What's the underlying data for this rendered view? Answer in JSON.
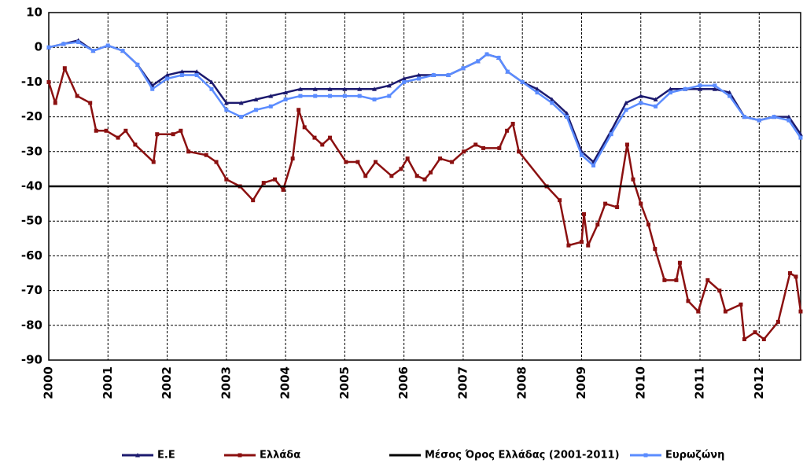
{
  "chart_data": {
    "type": "line",
    "xlim": [
      2000,
      2012.7
    ],
    "xticks": [
      2000,
      2001,
      2002,
      2003,
      2004,
      2005,
      2006,
      2007,
      2008,
      2009,
      2010,
      2011,
      2012
    ],
    "ylim": [
      -90,
      10
    ],
    "yticks": [
      10,
      0,
      -10,
      -20,
      -30,
      -40,
      -50,
      -60,
      -70,
      -80,
      -90
    ],
    "grid": true,
    "series": [
      {
        "name": "Ε.Ε",
        "color": "#1c1a6e",
        "marker": "triangle",
        "x": [
          2000,
          2000.25,
          2000.5,
          2000.75,
          2001,
          2001.25,
          2001.5,
          2001.75,
          2002,
          2002.25,
          2002.5,
          2002.75,
          2003,
          2003.25,
          2003.5,
          2003.75,
          2004,
          2004.25,
          2004.5,
          2004.75,
          2005,
          2005.25,
          2005.5,
          2005.75,
          2006,
          2006.25,
          2006.5,
          2006.75,
          2007,
          2007.25,
          2007.4,
          2007.6,
          2007.75,
          2008,
          2008.25,
          2008.5,
          2008.75,
          2009,
          2009.2,
          2009.5,
          2009.75,
          2010,
          2010.25,
          2010.5,
          2010.75,
          2011,
          2011.25,
          2011.5,
          2011.75,
          2012,
          2012.25,
          2012.5,
          2012.7
        ],
        "values": [
          0,
          1,
          2,
          -1,
          0.5,
          -1,
          -5,
          -11,
          -8,
          -7,
          -7,
          -10,
          -16,
          -16,
          -15,
          -14,
          -13,
          -12,
          -12,
          -12,
          -12,
          -12,
          -12,
          -11,
          -9,
          -8,
          -8,
          -8,
          -6,
          -4,
          -2,
          -3,
          -7,
          -10,
          -12,
          -15,
          -19,
          -30,
          -33,
          -24,
          -16,
          -14,
          -15,
          -12,
          -12,
          -12,
          -12,
          -13,
          -20,
          -21,
          -20,
          -20,
          -25
        ]
      },
      {
        "name": "Ελλάδα",
        "color": "#8b1010",
        "marker": "square",
        "x": [
          2000,
          2000.11,
          2000.27,
          2000.48,
          2000.7,
          2000.8,
          2000.97,
          2001.17,
          2001.3,
          2001.46,
          2001.77,
          2001.83,
          2002.1,
          2002.23,
          2002.36,
          2002.66,
          2002.83,
          2003.0,
          2003.23,
          2003.45,
          2003.63,
          2003.82,
          2003.96,
          2004.12,
          2004.22,
          2004.32,
          2004.49,
          2004.62,
          2004.75,
          2005.02,
          2005.22,
          2005.35,
          2005.52,
          2005.79,
          2005.95,
          2006.06,
          2006.22,
          2006.35,
          2006.45,
          2006.61,
          2006.81,
          2007.01,
          2007.21,
          2007.34,
          2007.61,
          2007.74,
          2007.84,
          2007.94,
          2008.41,
          2008.63,
          2008.78,
          2009.0,
          2009.04,
          2009.11,
          2009.27,
          2009.4,
          2009.6,
          2009.77,
          2009.87,
          2010.0,
          2010.13,
          2010.24,
          2010.4,
          2010.6,
          2010.66,
          2010.8,
          2010.97,
          2011.13,
          2011.33,
          2011.43,
          2011.69,
          2011.75,
          2011.93,
          2012.08,
          2012.32,
          2012.52,
          2012.62,
          2012.7
        ],
        "values": [
          -10,
          -16,
          -6,
          -14,
          -16,
          -24,
          -24,
          -26,
          -24,
          -28,
          -33,
          -25,
          -25,
          -24,
          -30,
          -31,
          -33,
          -38,
          -40,
          -44,
          -39,
          -38,
          -41,
          -32,
          -18,
          -23,
          -26,
          -28,
          -26,
          -33,
          -33,
          -37,
          -33,
          -37,
          -35,
          -32,
          -37,
          -38,
          -36,
          -32,
          -33,
          -30,
          -28,
          -29,
          -29,
          -24,
          -22,
          -30,
          -40,
          -44,
          -57,
          -56,
          -48,
          -57,
          -51,
          -45,
          -46,
          -28,
          -38,
          -45,
          -51,
          -58,
          -67,
          -67,
          -62,
          -73,
          -76,
          -67,
          -70,
          -76,
          -74,
          -84,
          -82,
          -84,
          -79,
          -65,
          -66,
          -76
        ]
      },
      {
        "name": "Μέσος Όρος Ελλάδας (2001-2011)",
        "color": "#000000",
        "marker": "none",
        "x": [
          2000,
          2012.7
        ],
        "values": [
          -40,
          -40
        ]
      },
      {
        "name": "Ευρωζώνη",
        "color": "#5b8cff",
        "marker": "square",
        "x": [
          2000,
          2000.25,
          2000.5,
          2000.75,
          2001,
          2001.25,
          2001.5,
          2001.75,
          2002,
          2002.25,
          2002.5,
          2002.75,
          2003,
          2003.25,
          2003.5,
          2003.75,
          2004,
          2004.25,
          2004.5,
          2004.75,
          2005,
          2005.25,
          2005.5,
          2005.75,
          2006,
          2006.25,
          2006.5,
          2006.75,
          2007,
          2007.25,
          2007.4,
          2007.6,
          2007.75,
          2008,
          2008.25,
          2008.5,
          2008.75,
          2009,
          2009.2,
          2009.5,
          2009.75,
          2010,
          2010.25,
          2010.5,
          2010.75,
          2011,
          2011.25,
          2011.5,
          2011.75,
          2012,
          2012.25,
          2012.5,
          2012.7
        ],
        "values": [
          0,
          1,
          1.5,
          -1,
          0.5,
          -1,
          -5,
          -12,
          -9,
          -8,
          -8,
          -12,
          -18,
          -20,
          -18,
          -17,
          -15,
          -14,
          -14,
          -14,
          -14,
          -14,
          -15,
          -14,
          -10,
          -9,
          -8,
          -8,
          -6,
          -4,
          -2,
          -3,
          -7,
          -10,
          -13,
          -16,
          -20,
          -31,
          -34,
          -25,
          -18,
          -16,
          -17,
          -13,
          -12,
          -11,
          -11,
          -14,
          -20,
          -21,
          -20,
          -21,
          -26
        ]
      }
    ]
  }
}
